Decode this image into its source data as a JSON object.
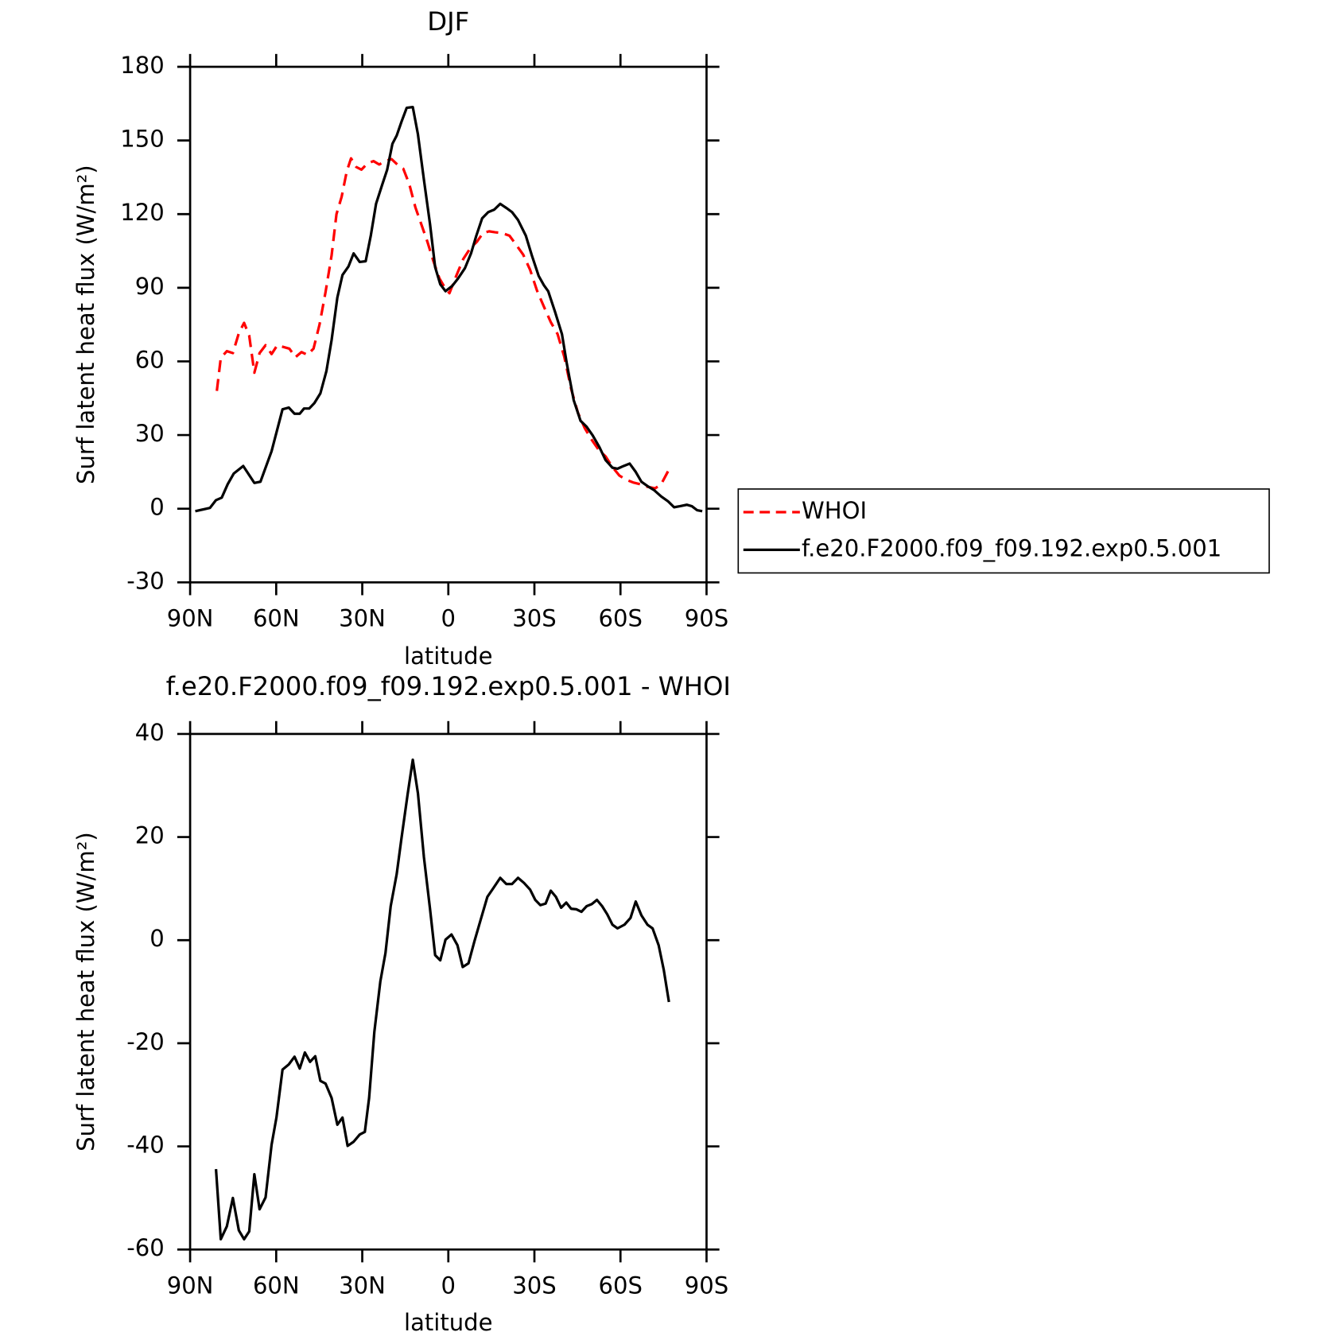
{
  "chart_data": [
    {
      "type": "line",
      "title": "DJF",
      "xlabel": "latitude",
      "ylabel": "Surf latent heat flux (W/m²)",
      "xlim": [
        90,
        -90
      ],
      "xticks": [
        {
          "value": 90,
          "label": "90N"
        },
        {
          "value": 60,
          "label": "60N"
        },
        {
          "value": 30,
          "label": "30N"
        },
        0,
        {
          "value": -30,
          "label": "30S"
        },
        {
          "value": -60,
          "label": "60S"
        },
        {
          "value": -90,
          "label": "90S"
        }
      ],
      "ylim": [
        -30,
        180
      ],
      "yticks": [
        -30,
        0,
        30,
        60,
        90,
        120,
        150,
        180
      ],
      "legend": "right",
      "series": [
        {
          "name": "WHOI",
          "color": "#ff0000",
          "dashed": true,
          "x": [
            80.7,
            79.3,
            77.2,
            75.1,
            73,
            71.2,
            69.4,
            67.6,
            65.8,
            63.7,
            61.6,
            59.6,
            57.5,
            55.4,
            53.3,
            51.2,
            49.1,
            47,
            44.9,
            42.8,
            40.7,
            39,
            37.2,
            35.4,
            33.9,
            32.1,
            30.3,
            28.2,
            26.1,
            24.1,
            22,
            19.8,
            17.8,
            15.7,
            13.6,
            11.5,
            9.4,
            7.3,
            5.2,
            3.1,
            1,
            -0.4,
            -2.5,
            -5.2,
            -7.6,
            -10,
            -12.1,
            -14.2,
            -16.3,
            -18.7,
            -21.3,
            -23.7,
            -26.1,
            -28.5,
            -30.9,
            -33.3,
            -35.7,
            -38.1,
            -40.4,
            -42.8,
            -45.2,
            -47.6,
            -50,
            -52.4,
            -54.8,
            -57.2,
            -59.6,
            -62,
            -64.4,
            -66.8,
            -69.2,
            -72.1,
            -74.2,
            -77.2
          ],
          "values": [
            48,
            61.4,
            64.2,
            63.4,
            71.5,
            75.7,
            70.5,
            55.4,
            63.4,
            66.6,
            63,
            66.6,
            65.9,
            65.2,
            61.7,
            63.8,
            62.7,
            65.2,
            75,
            88.2,
            103.2,
            120,
            127,
            137.4,
            142.7,
            139.2,
            138.1,
            140.6,
            141.6,
            140.2,
            141.6,
            142.4,
            140.2,
            138.5,
            132.2,
            122.8,
            115.8,
            108.8,
            100.8,
            93.8,
            89.6,
            87.8,
            94.1,
            101.7,
            106,
            108.8,
            112.3,
            113,
            112.6,
            112.3,
            111.2,
            107.4,
            103.5,
            97.3,
            88.9,
            82.3,
            76,
            71.1,
            62,
            48.8,
            39,
            32.7,
            28,
            24,
            21.3,
            17,
            13.5,
            11.8,
            10.7,
            10,
            9,
            8.3,
            10,
            16.6
          ]
        },
        {
          "name": "f.e20.F2000.f09_f09.192.exp0.5.001",
          "color": "#000000",
          "dashed": false,
          "x": [
            88.2,
            83.1,
            81,
            79,
            76.9,
            74.8,
            71.5,
            67.6,
            65.5,
            61.6,
            57.8,
            55.6,
            53.6,
            51.8,
            50.3,
            48.5,
            46.7,
            44.6,
            42.5,
            40.7,
            38.7,
            36.9,
            34.8,
            33,
            30.9,
            28.8,
            27,
            25.2,
            23.1,
            21.3,
            19.5,
            18,
            16.3,
            14.5,
            12.4,
            10.6,
            8.5,
            6.4,
            4.6,
            2.8,
            1,
            -1.3,
            -3.4,
            -5.8,
            -7.9,
            -9.7,
            -11.8,
            -13.9,
            -16,
            -18.1,
            -20.2,
            -22.2,
            -24.3,
            -27,
            -29.1,
            -31.5,
            -33.3,
            -34.8,
            -37.2,
            -39.6,
            -41.3,
            -43.7,
            -46.1,
            -48.2,
            -50.3,
            -52.7,
            -54.8,
            -57.2,
            -59,
            -61.1,
            -63.2,
            -65.3,
            -67.3,
            -69.7,
            -71.8,
            -74.2,
            -76.6,
            -78.7,
            -80.7,
            -83.1,
            -84.9,
            -86.7,
            -88.5
          ],
          "values": [
            -1,
            0.3,
            3.5,
            4.5,
            10,
            14.3,
            17.4,
            10.5,
            11,
            23.4,
            40.5,
            41.2,
            38.7,
            38.7,
            40.8,
            40.8,
            43,
            47,
            56,
            68.7,
            86,
            95.2,
            98.7,
            104,
            100.5,
            100.8,
            111.3,
            124.2,
            131.8,
            138.1,
            148.6,
            152,
            157.7,
            163.3,
            163.6,
            152.5,
            134,
            116,
            98.4,
            91.4,
            88.6,
            90.7,
            93.8,
            98,
            104,
            111,
            118.3,
            120.8,
            121.8,
            124.2,
            122.5,
            120.8,
            117.6,
            111.2,
            103.2,
            94.8,
            91,
            88.6,
            80.2,
            71.1,
            59,
            44.2,
            35.8,
            33.4,
            29.9,
            25,
            19.8,
            16.7,
            16.3,
            17.4,
            18.4,
            15,
            11,
            9,
            7.5,
            5,
            3,
            0.6,
            1,
            1.6,
            1,
            -0.6,
            -1
          ]
        }
      ]
    },
    {
      "type": "line",
      "title": "f.e20.F2000.f09_f09.192.exp0.5.001 - WHOI",
      "xlabel": "latitude",
      "ylabel": "Surf latent heat flux (W/m²)",
      "xlim": [
        90,
        -90
      ],
      "xticks": [
        {
          "value": 90,
          "label": "90N"
        },
        {
          "value": 60,
          "label": "60N"
        },
        {
          "value": 30,
          "label": "30N"
        },
        0,
        {
          "value": -30,
          "label": "30S"
        },
        {
          "value": -60,
          "label": "60S"
        },
        {
          "value": -90,
          "label": "90S"
        }
      ],
      "ylim": [
        -60,
        40
      ],
      "yticks": [
        -60,
        -40,
        -20,
        0,
        20,
        40
      ],
      "series": [
        {
          "color": "#000000",
          "dashed": false,
          "x": [
            81,
            79.3,
            77.2,
            75.1,
            73,
            71.2,
            69.4,
            67.6,
            65.8,
            63.7,
            61.6,
            59.9,
            57.8,
            55.6,
            53.6,
            51.8,
            50,
            48.2,
            46.4,
            44.6,
            42.8,
            40.7,
            38.7,
            36.9,
            35.1,
            33,
            30.9,
            29.1,
            27.6,
            25.8,
            23.7,
            21.9,
            20.1,
            18,
            16.3,
            14.2,
            12.4,
            10.6,
            8.5,
            6.4,
            4.6,
            2.8,
            1,
            -1.1,
            -3.2,
            -5,
            -7,
            -9.1,
            -11.2,
            -13.6,
            -15.7,
            -18.1,
            -20.2,
            -22.2,
            -24.3,
            -26.4,
            -28.5,
            -30.3,
            -32.1,
            -33.9,
            -35.7,
            -37.5,
            -39.3,
            -41.1,
            -42.8,
            -44.6,
            -46.4,
            -48.2,
            -50,
            -51.8,
            -53.6,
            -55.4,
            -57.2,
            -59,
            -61.4,
            -63.5,
            -65.3,
            -67.3,
            -69.4,
            -71.2,
            -73.3,
            -75.1,
            -76.9
          ],
          "values": [
            -44.4,
            -58,
            -55.5,
            -50,
            -56.3,
            -58,
            -56.5,
            -45.4,
            -52.2,
            -49.9,
            -39.7,
            -34.4,
            -25.1,
            -24.1,
            -22.6,
            -24.9,
            -21.8,
            -23.6,
            -22.5,
            -27.3,
            -27.8,
            -30.6,
            -35.8,
            -34.4,
            -39.9,
            -39.1,
            -37.7,
            -37.2,
            -30.6,
            -17.8,
            -8,
            -2.5,
            6.6,
            12.8,
            19.9,
            28.2,
            35,
            28.5,
            16.1,
            6.1,
            -2.9,
            -3.9,
            0.1,
            1.1,
            -1,
            -5.2,
            -4.5,
            -0.2,
            3.8,
            8.4,
            10.1,
            12.1,
            10.9,
            10.9,
            12.1,
            11.1,
            9.8,
            7.8,
            6.8,
            7.1,
            9.6,
            8.4,
            6.3,
            7.3,
            6.1,
            6,
            5.5,
            6.6,
            7,
            7.8,
            6.6,
            5,
            3,
            2.3,
            3,
            4.3,
            7.5,
            4.8,
            3,
            2.3,
            -1,
            -5.8,
            -12
          ]
        }
      ]
    }
  ]
}
